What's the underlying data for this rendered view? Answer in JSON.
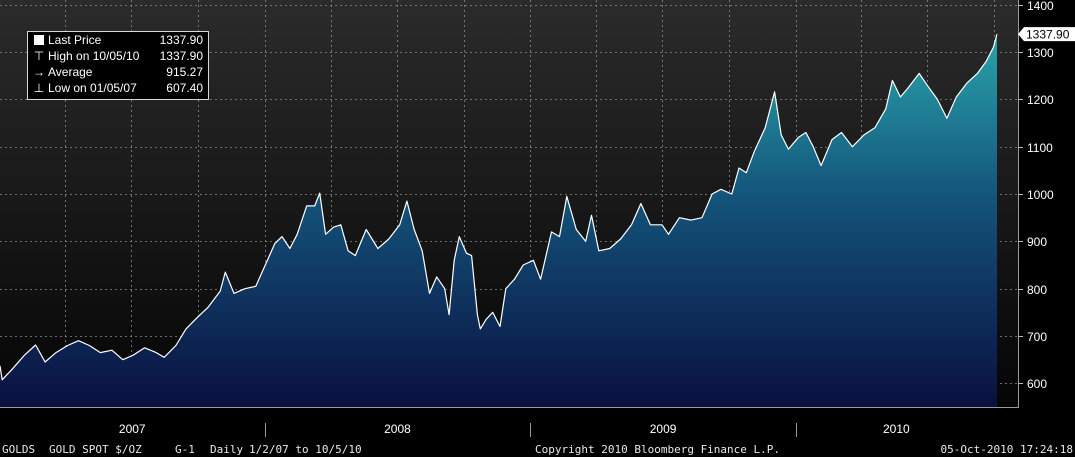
{
  "chart_data": {
    "type": "area",
    "title": "GOLD SPOT $/OZ",
    "x_range": [
      "2007-01-02",
      "2010-10-05"
    ],
    "ylim": [
      550,
      1410
    ],
    "y_ticks": [
      600,
      700,
      800,
      900,
      1000,
      1100,
      1200,
      1300,
      1400
    ],
    "x_labels": [
      "2007",
      "2008",
      "2009",
      "2010"
    ],
    "grid": true,
    "colors": {
      "background_top": "#2b2b2b",
      "area_top": "#2aa7ad",
      "area_bottom": "#0a1040",
      "line": "#ffffff"
    },
    "series": [
      {
        "name": "Last Price",
        "points": [
          [
            "2007-01-02",
            637
          ],
          [
            "2007-01-05",
            607.4
          ],
          [
            "2007-01-20",
            632
          ],
          [
            "2007-02-05",
            660
          ],
          [
            "2007-02-20",
            681
          ],
          [
            "2007-03-05",
            645
          ],
          [
            "2007-03-20",
            665
          ],
          [
            "2007-04-05",
            680
          ],
          [
            "2007-04-20",
            690
          ],
          [
            "2007-05-05",
            680
          ],
          [
            "2007-05-20",
            665
          ],
          [
            "2007-06-05",
            670
          ],
          [
            "2007-06-20",
            650
          ],
          [
            "2007-07-05",
            660
          ],
          [
            "2007-07-20",
            675
          ],
          [
            "2007-08-05",
            665
          ],
          [
            "2007-08-16",
            655
          ],
          [
            "2007-09-01",
            680
          ],
          [
            "2007-09-15",
            715
          ],
          [
            "2007-10-01",
            740
          ],
          [
            "2007-10-15",
            760
          ],
          [
            "2007-11-01",
            795
          ],
          [
            "2007-11-08",
            835
          ],
          [
            "2007-11-20",
            790
          ],
          [
            "2007-12-05",
            800
          ],
          [
            "2007-12-20",
            805
          ],
          [
            "2008-01-05",
            860
          ],
          [
            "2008-01-15",
            895
          ],
          [
            "2008-01-25",
            910
          ],
          [
            "2008-02-05",
            885
          ],
          [
            "2008-02-15",
            915
          ],
          [
            "2008-02-28",
            975
          ],
          [
            "2008-03-10",
            975
          ],
          [
            "2008-03-17",
            1002
          ],
          [
            "2008-03-25",
            915
          ],
          [
            "2008-04-05",
            930
          ],
          [
            "2008-04-15",
            935
          ],
          [
            "2008-04-25",
            880
          ],
          [
            "2008-05-05",
            870
          ],
          [
            "2008-05-20",
            925
          ],
          [
            "2008-06-05",
            885
          ],
          [
            "2008-06-20",
            905
          ],
          [
            "2008-07-05",
            935
          ],
          [
            "2008-07-15",
            985
          ],
          [
            "2008-07-25",
            925
          ],
          [
            "2008-08-05",
            880
          ],
          [
            "2008-08-15",
            790
          ],
          [
            "2008-08-25",
            825
          ],
          [
            "2008-09-05",
            800
          ],
          [
            "2008-09-11",
            745
          ],
          [
            "2008-09-18",
            860
          ],
          [
            "2008-09-25",
            910
          ],
          [
            "2008-10-05",
            875
          ],
          [
            "2008-10-12",
            870
          ],
          [
            "2008-10-20",
            745
          ],
          [
            "2008-10-24",
            715
          ],
          [
            "2008-11-01",
            735
          ],
          [
            "2008-11-10",
            750
          ],
          [
            "2008-11-20",
            720
          ],
          [
            "2008-11-28",
            800
          ],
          [
            "2008-12-10",
            820
          ],
          [
            "2008-12-22",
            850
          ],
          [
            "2009-01-05",
            860
          ],
          [
            "2009-01-15",
            820
          ],
          [
            "2009-01-30",
            920
          ],
          [
            "2009-02-10",
            910
          ],
          [
            "2009-02-20",
            995
          ],
          [
            "2009-03-05",
            925
          ],
          [
            "2009-03-18",
            900
          ],
          [
            "2009-03-26",
            955
          ],
          [
            "2009-04-05",
            880
          ],
          [
            "2009-04-20",
            885
          ],
          [
            "2009-05-05",
            905
          ],
          [
            "2009-05-20",
            935
          ],
          [
            "2009-06-02",
            980
          ],
          [
            "2009-06-15",
            935
          ],
          [
            "2009-07-01",
            935
          ],
          [
            "2009-07-10",
            915
          ],
          [
            "2009-07-25",
            950
          ],
          [
            "2009-08-10",
            945
          ],
          [
            "2009-08-25",
            950
          ],
          [
            "2009-09-08",
            1000
          ],
          [
            "2009-09-20",
            1010
          ],
          [
            "2009-10-05",
            1000
          ],
          [
            "2009-10-15",
            1055
          ],
          [
            "2009-10-25",
            1045
          ],
          [
            "2009-11-05",
            1090
          ],
          [
            "2009-11-20",
            1140
          ],
          [
            "2009-12-03",
            1216
          ],
          [
            "2009-12-12",
            1125
          ],
          [
            "2009-12-22",
            1095
          ],
          [
            "2010-01-05",
            1120
          ],
          [
            "2010-01-15",
            1130
          ],
          [
            "2010-01-25",
            1100
          ],
          [
            "2010-02-05",
            1060
          ],
          [
            "2010-02-20",
            1115
          ],
          [
            "2010-03-05",
            1130
          ],
          [
            "2010-03-20",
            1100
          ],
          [
            "2010-04-05",
            1125
          ],
          [
            "2010-04-20",
            1140
          ],
          [
            "2010-05-05",
            1180
          ],
          [
            "2010-05-14",
            1240
          ],
          [
            "2010-05-25",
            1205
          ],
          [
            "2010-06-05",
            1225
          ],
          [
            "2010-06-20",
            1255
          ],
          [
            "2010-07-01",
            1230
          ],
          [
            "2010-07-15",
            1200
          ],
          [
            "2010-07-28",
            1160
          ],
          [
            "2010-08-10",
            1205
          ],
          [
            "2010-08-25",
            1235
          ],
          [
            "2010-09-08",
            1255
          ],
          [
            "2010-09-20",
            1280
          ],
          [
            "2010-09-30",
            1310
          ],
          [
            "2010-10-05",
            1337.9
          ]
        ]
      }
    ],
    "last_value_label": "1337.90",
    "legend": {
      "placement": "top-left",
      "rows": [
        {
          "symbol": "square",
          "label": "Last Price",
          "value": "1337.90"
        },
        {
          "symbol": "high-marker",
          "label": "High on 10/05/10",
          "value": "1337.90"
        },
        {
          "symbol": "average-marker",
          "label": "Average",
          "value": "915.27"
        },
        {
          "symbol": "low-marker",
          "label": "Low on 01/05/07",
          "value": "607.40"
        }
      ]
    }
  },
  "footer": {
    "ticker": "GOLDS",
    "security": "GOLD SPOT $/OZ",
    "graph_id": "G-1",
    "periodicity": "Daily",
    "range": "1/2/07 to 10/5/10",
    "copyright": "Copyright 2010 Bloomberg Finance L.P.",
    "timestamp": "05-Oct-2010 17:24:18"
  }
}
